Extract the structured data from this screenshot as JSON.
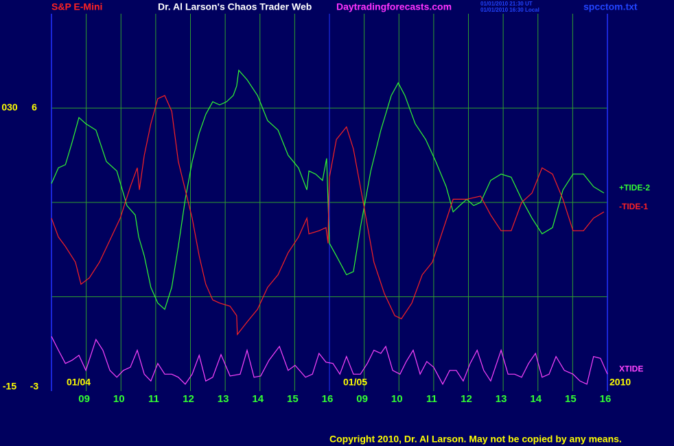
{
  "chart_data": {
    "type": "line",
    "title": "S&P E-Mini",
    "subtitle": "Dr. Al Larson's Chaos Trader Web",
    "site": "Daytradingforecasts.com",
    "timestamps": [
      "01/01/2010 21:30 UT",
      "01/01/2010 16:30 Local"
    ],
    "file": "spcctom.txt",
    "copyright": "Copyright 2010, Dr. Al Larson. May not be copied by any means.",
    "date_labels": [
      "01/04",
      "01/05",
      "2010"
    ],
    "xlim": [
      0,
      16
    ],
    "xticks": [
      {
        "value": 1,
        "label": "09"
      },
      {
        "value": 2,
        "label": "10"
      },
      {
        "value": 3,
        "label": "11"
      },
      {
        "value": 4,
        "label": "12"
      },
      {
        "value": 5,
        "label": "13"
      },
      {
        "value": 6,
        "label": "14"
      },
      {
        "value": 7,
        "label": "15"
      },
      {
        "value": 8,
        "label": "16"
      },
      {
        "value": 9,
        "label": "09"
      },
      {
        "value": 10,
        "label": "10"
      },
      {
        "value": 11,
        "label": "11"
      },
      {
        "value": 12,
        "label": "12"
      },
      {
        "value": 13,
        "label": "13"
      },
      {
        "value": 14,
        "label": "14"
      },
      {
        "value": 15,
        "label": "15"
      },
      {
        "value": 16,
        "label": "16"
      }
    ],
    "ylim": [
      -3,
      9
    ],
    "yticks": [
      6,
      -3
    ],
    "y2lim": [
      -15,
      45
    ],
    "y2ticks": [
      {
        "value": 30,
        "label": "030"
      },
      -15
    ],
    "hgrid": [
      0,
      3,
      6
    ],
    "grid_color": "#2f9f2f",
    "series": [
      {
        "name": "+TIDE-2",
        "color": "#33ff33",
        "x": [
          0,
          0.2,
          0.4,
          0.59,
          0.79,
          0.99,
          1.28,
          1.58,
          1.88,
          2.17,
          2.41,
          2.51,
          2.67,
          2.86,
          3.06,
          3.26,
          3.46,
          3.65,
          3.85,
          4.05,
          4.25,
          4.44,
          4.64,
          4.84,
          5.04,
          5.23,
          5.33,
          5.39,
          5.63,
          5.93,
          6.22,
          6.52,
          6.81,
          7.11,
          7.35,
          7.41,
          7.6,
          7.8,
          7.92,
          7.96,
          8.0,
          8.2,
          8.49,
          8.69,
          8.89,
          9.19,
          9.48,
          9.78,
          9.98,
          10.17,
          10.47,
          10.77,
          11.06,
          11.36,
          11.56,
          11.75,
          11.95,
          12.15,
          12.35,
          12.64,
          12.94,
          13.23,
          13.53,
          13.83,
          14.12,
          14.42,
          14.72,
          15.01,
          15.31,
          15.6,
          15.9
        ],
        "values": [
          3.6,
          4.1,
          4.2,
          4.9,
          5.7,
          5.5,
          5.3,
          4.3,
          4.0,
          2.9,
          2.6,
          1.9,
          1.3,
          0.3,
          -0.2,
          -0.4,
          0.3,
          1.6,
          3.1,
          4.3,
          5.2,
          5.8,
          6.2,
          6.1,
          6.2,
          6.4,
          6.7,
          7.2,
          6.9,
          6.4,
          5.6,
          5.3,
          4.5,
          4.1,
          3.4,
          4.0,
          3.9,
          3.7,
          4.4,
          3.0,
          1.7,
          1.3,
          0.7,
          0.8,
          2.2,
          4.0,
          5.3,
          6.4,
          6.8,
          6.4,
          5.5,
          5.0,
          4.3,
          3.5,
          2.7,
          2.9,
          3.1,
          2.9,
          3.0,
          3.7,
          3.9,
          3.8,
          3.1,
          2.5,
          2.0,
          2.2,
          3.4,
          3.9,
          3.9,
          3.5,
          3.3
        ]
      },
      {
        "name": "-TIDE-1",
        "color": "#ff2222",
        "x": [
          0,
          0.2,
          0.4,
          0.69,
          0.85,
          1.09,
          1.38,
          1.68,
          1.98,
          2.27,
          2.47,
          2.53,
          2.67,
          2.86,
          3.06,
          3.26,
          3.46,
          3.65,
          3.85,
          4.05,
          4.25,
          4.44,
          4.64,
          4.84,
          5.14,
          5.33,
          5.35,
          5.63,
          5.93,
          6.22,
          6.52,
          6.81,
          7.11,
          7.35,
          7.41,
          7.7,
          7.9,
          7.96,
          7.98,
          8.0,
          8.2,
          8.49,
          8.69,
          8.99,
          9.28,
          9.58,
          9.88,
          10.07,
          10.37,
          10.67,
          10.96,
          11.26,
          11.56,
          11.95,
          12.35,
          12.64,
          12.94,
          13.23,
          13.53,
          13.83,
          14.12,
          14.42,
          14.72,
          15.01,
          15.31,
          15.6,
          15.9
        ],
        "values": [
          2.5,
          1.9,
          1.6,
          1.1,
          0.4,
          0.6,
          1.1,
          1.8,
          2.5,
          3.5,
          4.1,
          3.4,
          4.5,
          5.5,
          6.3,
          6.4,
          5.9,
          4.3,
          3.4,
          2.5,
          1.3,
          0.4,
          -0.1,
          -0.2,
          -0.3,
          -0.6,
          -1.2,
          -0.8,
          -0.4,
          0.3,
          0.7,
          1.4,
          1.9,
          2.5,
          2.0,
          2.1,
          2.2,
          1.7,
          3.1,
          3.8,
          5.0,
          5.4,
          4.7,
          2.9,
          1.1,
          0.1,
          -0.6,
          -0.7,
          -0.2,
          0.7,
          1.1,
          2.1,
          3.1,
          3.1,
          3.2,
          2.6,
          2.1,
          2.1,
          3.0,
          3.3,
          4.1,
          3.9,
          3.1,
          2.1,
          2.1,
          2.5,
          2.7
        ]
      },
      {
        "name": "XTIDE",
        "color": "#ff44ff",
        "axis": "y2",
        "x": [
          0,
          0.2,
          0.4,
          0.59,
          0.79,
          0.99,
          1.28,
          1.48,
          1.68,
          1.88,
          2.07,
          2.27,
          2.47,
          2.67,
          2.86,
          3.06,
          3.26,
          3.46,
          3.65,
          3.85,
          4.05,
          4.25,
          4.44,
          4.64,
          4.88,
          5.14,
          5.43,
          5.63,
          5.83,
          6.02,
          6.26,
          6.56,
          6.81,
          7.01,
          7.31,
          7.51,
          7.7,
          7.9,
          8.1,
          8.3,
          8.49,
          8.69,
          8.89,
          9.09,
          9.28,
          9.48,
          9.62,
          9.82,
          10.03,
          10.21,
          10.41,
          10.61,
          10.8,
          11.0,
          11.26,
          11.46,
          11.65,
          11.85,
          12.05,
          12.25,
          12.44,
          12.64,
          12.94,
          13.14,
          13.33,
          13.53,
          13.73,
          13.93,
          14.12,
          14.32,
          14.52,
          14.76,
          15.01,
          15.21,
          15.41,
          15.6,
          15.8,
          16.0
        ],
        "values": [
          -6.3,
          -8.5,
          -10.6,
          -10.1,
          -9.3,
          -11.7,
          -6.8,
          -8.5,
          -11.7,
          -12.8,
          -11.7,
          -11.2,
          -8.5,
          -12.3,
          -13.4,
          -10.6,
          -12.3,
          -12.3,
          -12.8,
          -13.9,
          -12.3,
          -9.3,
          -13.4,
          -12.8,
          -9.2,
          -12.6,
          -12.3,
          -8.5,
          -12.8,
          -12.6,
          -10.1,
          -7.9,
          -11.7,
          -10.9,
          -12.8,
          -12.3,
          -9.0,
          -10.4,
          -10.6,
          -12.3,
          -9.5,
          -12.3,
          -12.3,
          -10.6,
          -8.5,
          -9.0,
          -7.9,
          -11.7,
          -12.3,
          -10.3,
          -8.5,
          -12.3,
          -10.3,
          -11.2,
          -13.9,
          -11.7,
          -11.7,
          -13.4,
          -10.6,
          -8.5,
          -11.7,
          -13.4,
          -8.5,
          -12.3,
          -12.3,
          -12.8,
          -10.6,
          -9.0,
          -12.8,
          -12.3,
          -9.5,
          -11.7,
          -12.3,
          -13.4,
          -13.9,
          -9.5,
          -9.8,
          -12.3
        ]
      }
    ]
  }
}
